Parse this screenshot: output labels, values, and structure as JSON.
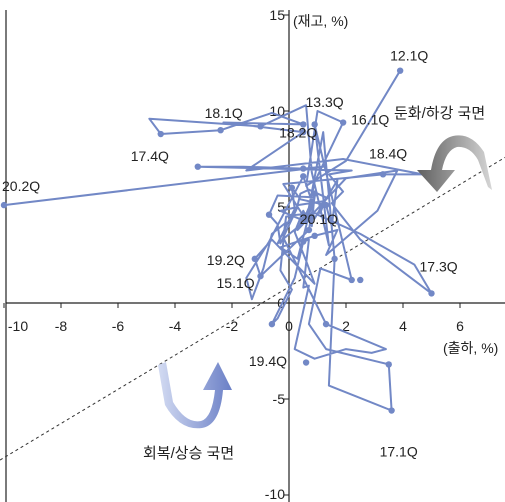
{
  "chart_data": {
    "type": "line",
    "xlabel": "(출하, %)",
    "ylabel": "(재고, %)",
    "xlim": [
      -10.5,
      7.6
    ],
    "ylim": [
      -10,
      15
    ],
    "x_ticks": [
      "-10",
      "-8",
      "-6",
      "-4",
      "-2",
      "0",
      "2",
      "4",
      "6"
    ],
    "x_tick_values": [
      -10,
      -8,
      -6,
      -4,
      -2,
      0,
      2,
      4,
      6
    ],
    "y_ticks": [
      "15",
      "10",
      "5",
      "0",
      "-5",
      "-10"
    ],
    "y_tick_values": [
      15,
      10,
      5,
      0,
      -5,
      -10
    ],
    "series": [
      {
        "values": [
          [
            3.9,
            12.1
          ],
          [
            2.0,
            7.4
          ],
          [
            0.6,
            6.1
          ],
          [
            1.0,
            10.0
          ],
          [
            1.9,
            9.4
          ],
          [
            0.9,
            6.3
          ],
          [
            0.6,
            4.2
          ],
          [
            1.2,
            8.9
          ],
          [
            1.6,
            2.3
          ],
          [
            1.4,
            -4.3
          ],
          [
            3.6,
            -5.6
          ],
          [
            3.5,
            -3.2
          ],
          [
            1.3,
            -2.4
          ],
          [
            0.7,
            -1.1
          ],
          [
            1.1,
            1.8
          ],
          [
            2.2,
            1.2
          ],
          [
            0.9,
            9.3
          ],
          [
            1.4,
            3.0
          ],
          [
            0.8,
            6.8
          ],
          [
            0.6,
            10.3
          ],
          [
            -1.0,
            9.2
          ],
          [
            -4.9,
            9.6
          ],
          [
            -4.5,
            8.8
          ],
          [
            -2.4,
            9.0
          ],
          [
            -0.6,
            9.9
          ],
          [
            0.5,
            9.3
          ],
          [
            -2.3,
            9.4
          ],
          [
            0.5,
            8.9
          ],
          [
            -1.5,
            6.9
          ],
          [
            1.9,
            7.5
          ],
          [
            4.7,
            6.7
          ],
          [
            3.3,
            6.7
          ],
          [
            -0.2,
            6.2
          ],
          [
            0.6,
            4.3
          ],
          [
            -0.4,
            3.1
          ],
          [
            0.2,
            4.9
          ],
          [
            0.1,
            6.0
          ],
          [
            0.4,
            5.4
          ],
          [
            1.3,
            5.1
          ],
          [
            1.5,
            4.0
          ],
          [
            1.7,
            6.4
          ],
          [
            0.9,
            4.4
          ],
          [
            0.5,
            4.5
          ],
          [
            0.3,
            3.8
          ],
          [
            2.0,
            6.5
          ],
          [
            3.8,
            6.9
          ],
          [
            3.1,
            4.8
          ],
          [
            1.3,
            2.5
          ],
          [
            1.7,
            3.8
          ],
          [
            0.9,
            3.5
          ],
          [
            -0.3,
            2.9
          ],
          [
            0.3,
            2.3
          ],
          [
            0.9,
            5.7
          ],
          [
            0.8,
            4.0
          ],
          [
            0.5,
            4.8
          ],
          [
            0.2,
            3.7
          ],
          [
            0.6,
            2.2
          ],
          [
            0.9,
            1.0
          ],
          [
            -0.6,
            3.3
          ],
          [
            -1.2,
            2.3
          ],
          [
            -1.0,
            1.4
          ],
          [
            0.7,
            3.8
          ],
          [
            0.9,
            5.5
          ],
          [
            -0.4,
            5.6
          ],
          [
            -0.7,
            4.6
          ],
          [
            -0.4,
            4.1
          ],
          [
            -0.3,
            3.1
          ],
          [
            0.3,
            5.0
          ],
          [
            -0.3,
            4.8
          ],
          [
            0.5,
            4.3
          ],
          [
            0.8,
            5.3
          ],
          [
            0.5,
            6.6
          ],
          [
            -0.7,
            3.2
          ],
          [
            -1.5,
            1.3
          ],
          [
            -1.3,
            0.2
          ],
          [
            -0.9,
            1.8
          ],
          [
            -0.6,
            3.6
          ],
          [
            -0.1,
            4.2
          ],
          [
            -0.2,
            3.2
          ],
          [
            -0.3,
            1.7
          ],
          [
            0.1,
            0.7
          ],
          [
            -0.4,
            -0.8
          ],
          [
            -0.6,
            -1.1
          ],
          [
            0.2,
            1.3
          ],
          [
            0.5,
            3.2
          ],
          [
            0.7,
            3.3
          ],
          [
            0.5,
            0.8
          ],
          [
            0.7,
            0.9
          ],
          [
            0.2,
            -2.4
          ],
          [
            0.9,
            -2.9
          ],
          [
            2.0,
            -2.4
          ],
          [
            2.9,
            -2.6
          ],
          [
            3.4,
            -2.4
          ],
          [
            1.3,
            -1.1
          ],
          [
            -0.2,
            3.4
          ],
          [
            -0.1,
            4.5
          ],
          [
            0.3,
            4.6
          ],
          [
            1.1,
            4.7
          ],
          [
            1.3,
            5.5
          ],
          [
            0.7,
            5.9
          ],
          [
            0.4,
            5.7
          ],
          [
            0.3,
            5.1
          ],
          [
            1.2,
            5.3
          ],
          [
            1.0,
            4.6
          ],
          [
            2.5,
            3.6
          ],
          [
            4.4,
            2.0
          ],
          [
            5.0,
            0.5
          ],
          [
            2.5,
            3.3
          ],
          [
            1.7,
            4.8
          ],
          [
            1.5,
            5.2
          ],
          [
            1.9,
            5.8
          ],
          [
            1.4,
            6.7
          ],
          [
            2.2,
            6.9
          ],
          [
            -3.2,
            7.1
          ],
          [
            -1.6,
            7.1
          ],
          [
            0.5,
            7.0
          ],
          [
            1.2,
            7.1
          ],
          [
            -10.0,
            5.1
          ]
        ]
      }
    ],
    "markers": [
      [
        3.9,
        12.1
      ],
      [
        1.9,
        9.4
      ],
      [
        1.6,
        2.3
      ],
      [
        3.6,
        -5.6
      ],
      [
        3.5,
        -3.2
      ],
      [
        1.3,
        -1.1
      ],
      [
        -1.0,
        9.2
      ],
      [
        -4.5,
        8.8
      ],
      [
        -2.4,
        9.0
      ],
      [
        0.5,
        9.3
      ],
      [
        0.9,
        9.3
      ],
      [
        0.5,
        8.9
      ],
      [
        3.3,
        6.7
      ],
      [
        0.1,
        6.0
      ],
      [
        1.3,
        5.1
      ],
      [
        0.9,
        3.5
      ],
      [
        2.2,
        1.2
      ],
      [
        0.9,
        5.7
      ],
      [
        -1.2,
        2.3
      ],
      [
        -1.0,
        1.4
      ],
      [
        0.7,
        3.8
      ],
      [
        -0.7,
        4.6
      ],
      [
        5.0,
        0.5
      ],
      [
        2.5,
        1.2
      ],
      [
        -0.6,
        -1.1
      ],
      [
        0.5,
        3.2
      ],
      [
        0.6,
        -3.1
      ],
      [
        0.5,
        6.6
      ],
      [
        -3.2,
        7.1
      ],
      [
        -10.0,
        5.1
      ],
      [
        0.5,
        7.0
      ],
      [
        0.8,
        4.5
      ]
    ],
    "labels": [
      {
        "text": "12.1Q",
        "x": 3.9,
        "y": 12.1
      },
      {
        "text": "18.1Q",
        "x": -2.4,
        "y": 9.0
      },
      {
        "text": "13.3Q",
        "x": 1.0,
        "y": 10.0
      },
      {
        "text": "16.1Q",
        "x": 1.9,
        "y": 9.4
      },
      {
        "text": "18.2Q",
        "x": 0.6,
        "y": 9.3
      },
      {
        "text": "17.4Q",
        "x": -4.5,
        "y": 8.8
      },
      {
        "text": "18.4Q",
        "x": 3.3,
        "y": 6.7
      },
      {
        "text": "20.2Q",
        "x": -10.0,
        "y": 5.1
      },
      {
        "text": "20.1Q",
        "x": 0.8,
        "y": 5.3
      },
      {
        "text": "19.2Q",
        "x": -1.2,
        "y": 2.3
      },
      {
        "text": "17.3Q",
        "x": 5.0,
        "y": 0.5
      },
      {
        "text": "15.1Q",
        "x": -1.0,
        "y": 1.4
      },
      {
        "text": "19.4Q",
        "x": -0.6,
        "y": -1.1
      },
      {
        "text": "17.1Q",
        "x": 3.6,
        "y": -5.6
      }
    ],
    "phases": [
      {
        "text": "둔화/하강 국면"
      },
      {
        "text": "회복/상승 국면"
      }
    ],
    "guide_line": {
      "style": "dashed",
      "from": [
        -10.5,
        -8.5
      ],
      "to": [
        7.6,
        7.6
      ]
    },
    "grid": false
  },
  "colors": {
    "series": "#7288c6",
    "axis": "#222222",
    "arrow_gray_light": "#c9c9c9",
    "arrow_gray_dark": "#6f6f6f",
    "arrow_blue_light": "#c9d2ee",
    "arrow_blue_dark": "#6c80c6"
  }
}
